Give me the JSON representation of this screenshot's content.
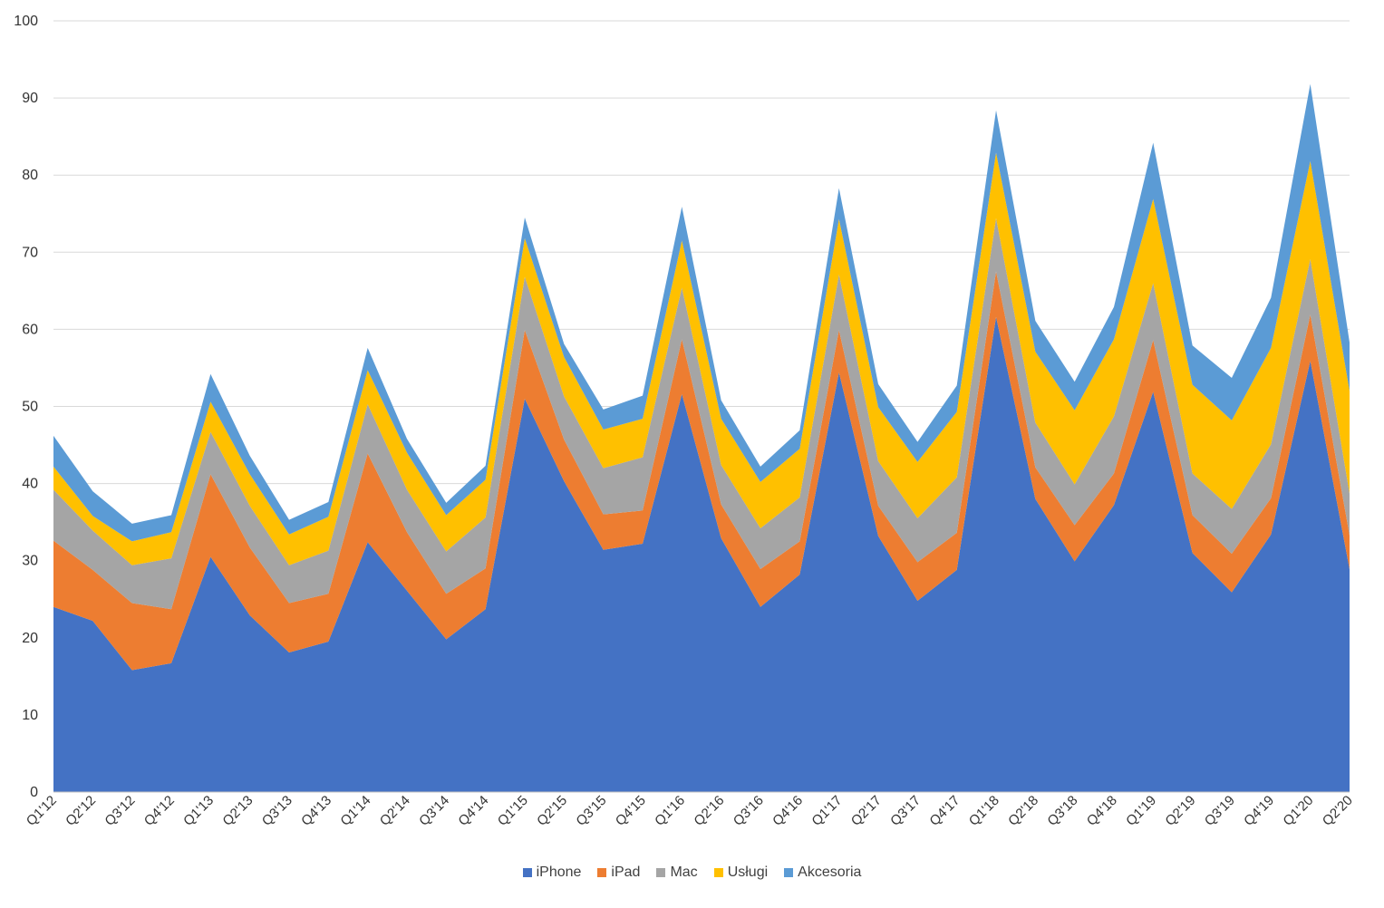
{
  "chart_data": {
    "type": "area",
    "stacked": true,
    "title": "",
    "xlabel": "",
    "ylabel": "",
    "ylim": [
      0,
      100
    ],
    "yticks": [
      0,
      10,
      20,
      30,
      40,
      50,
      60,
      70,
      80,
      90,
      100
    ],
    "grid": true,
    "legend_position": "bottom",
    "categories": [
      "Q1'12",
      "Q2'12",
      "Q3'12",
      "Q4'12",
      "Q1'13",
      "Q2'13",
      "Q3'13",
      "Q4'13",
      "Q1'14",
      "Q2'14",
      "Q3'14",
      "Q4'14",
      "Q1'15",
      "Q2'15",
      "Q3'15",
      "Q4'15",
      "Q1'16",
      "Q2'16",
      "Q3'16",
      "Q4'16",
      "Q1'17",
      "Q2'17",
      "Q3'17",
      "Q4'17",
      "Q1'18",
      "Q2'18",
      "Q3'18",
      "Q4'18",
      "Q1'19",
      "Q2'19",
      "Q3'19",
      "Q4'19",
      "Q1'20",
      "Q2'20"
    ],
    "series": [
      {
        "name": "iPhone",
        "color": "#4472C4",
        "values": [
          24.0,
          22.2,
          15.8,
          16.7,
          30.5,
          22.9,
          18.1,
          19.5,
          32.4,
          26.1,
          19.8,
          23.7,
          51.0,
          40.3,
          31.4,
          32.2,
          51.6,
          32.9,
          24.0,
          28.2,
          54.4,
          33.2,
          24.8,
          28.8,
          61.6,
          38.0,
          29.9,
          37.2,
          51.9,
          31.0,
          25.9,
          33.4,
          55.9,
          28.9
        ]
      },
      {
        "name": "iPad",
        "color": "#ED7D31",
        "values": [
          8.6,
          6.6,
          8.7,
          7.0,
          10.7,
          8.8,
          6.4,
          6.2,
          11.5,
          7.6,
          5.9,
          5.3,
          8.9,
          5.4,
          4.6,
          4.3,
          7.1,
          4.4,
          4.9,
          4.3,
          5.5,
          3.9,
          5.0,
          4.8,
          5.9,
          4.1,
          4.7,
          4.1,
          6.7,
          4.9,
          5.0,
          4.7,
          6.0,
          4.4
        ]
      },
      {
        "name": "Mac",
        "color": "#A5A5A5",
        "values": [
          6.6,
          5.1,
          4.9,
          6.6,
          5.5,
          5.4,
          4.9,
          5.6,
          6.4,
          5.5,
          5.5,
          6.6,
          6.9,
          5.6,
          6.0,
          6.9,
          6.7,
          5.1,
          5.3,
          5.7,
          7.2,
          5.8,
          5.7,
          7.2,
          6.9,
          5.8,
          5.3,
          7.4,
          7.4,
          5.4,
          5.8,
          7.0,
          7.2,
          5.4
        ]
      },
      {
        "name": "Usługi",
        "color": "#FFC000",
        "values": [
          3.0,
          1.9,
          3.1,
          3.4,
          3.9,
          4.1,
          4.0,
          4.4,
          4.4,
          4.8,
          4.7,
          4.9,
          5.0,
          5.1,
          5.0,
          5.0,
          6.1,
          6.0,
          6.0,
          6.3,
          7.2,
          7.0,
          7.3,
          8.5,
          8.5,
          9.2,
          9.6,
          10.0,
          10.9,
          11.5,
          11.5,
          12.5,
          12.7,
          13.3
        ]
      },
      {
        "name": "Akcesoria",
        "color": "#5B9BD5",
        "values": [
          4.0,
          3.2,
          2.3,
          2.2,
          3.6,
          2.4,
          1.9,
          1.9,
          2.9,
          1.8,
          1.6,
          1.8,
          2.7,
          1.7,
          2.6,
          3.0,
          4.4,
          2.4,
          2.0,
          2.4,
          4.0,
          3.0,
          2.6,
          3.4,
          5.5,
          4.0,
          3.7,
          4.2,
          7.3,
          5.1,
          5.5,
          6.5,
          10.0,
          6.3
        ]
      }
    ]
  }
}
